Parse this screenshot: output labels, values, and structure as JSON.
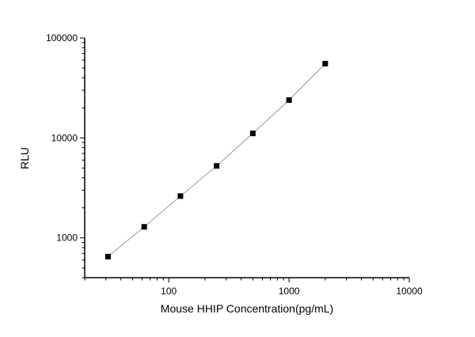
{
  "chart_data": {
    "type": "scatter",
    "title": "",
    "xlabel": "Mouse HHIP Concentration(pg/mL)",
    "ylabel": "RLU",
    "xscale": "log",
    "yscale": "log",
    "xlim": [
      20,
      10000
    ],
    "ylim": [
      400,
      100000
    ],
    "xticks": [
      100,
      1000,
      10000
    ],
    "xtick_labels": [
      "100",
      "1000",
      "10000"
    ],
    "yticks": [
      1000,
      10000,
      100000
    ],
    "ytick_labels": [
      "1000",
      "10000",
      "100000"
    ],
    "grid": false,
    "legend": "none",
    "fit_line": true,
    "marker_color": "#000000",
    "line_color": "#999999",
    "series": [
      {
        "x": [
          31.25,
          62.5,
          125,
          250,
          500,
          1000,
          2000
        ],
        "y": [
          650,
          1290,
          2620,
          5250,
          11100,
          23900,
          55300
        ]
      }
    ]
  }
}
